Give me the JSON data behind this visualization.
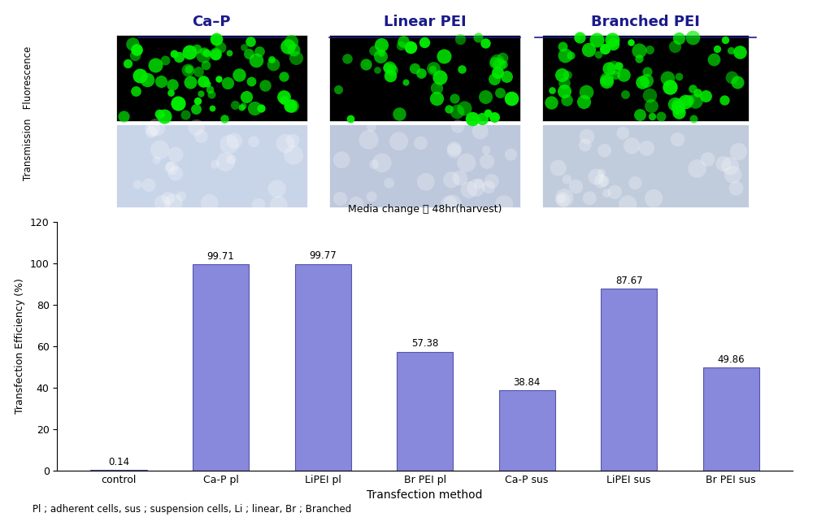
{
  "categories": [
    "control",
    "Ca-P pl",
    "LiPEI pl",
    "Br PEI pl",
    "Ca-P sus",
    "LiPEI sus",
    "Br PEI sus"
  ],
  "values": [
    0.14,
    99.71,
    99.77,
    57.38,
    38.84,
    87.67,
    49.86
  ],
  "bar_color": "#8888dd",
  "bar_edgecolor": "#5555aa",
  "subtitle": "Media change 後 48hr(harvest)",
  "xlabel": "Transfection method",
  "ylabel": "Transfection Efficiency (%)",
  "ylim": [
    0,
    120
  ],
  "yticks": [
    0,
    20,
    40,
    60,
    80,
    100,
    120
  ],
  "footnote": "Pl ; adherent cells, sus ; suspension cells, Li ; linear, Br ; Branched",
  "image_titles": [
    "Ca–P",
    "Linear PEI",
    "Branched PEI"
  ],
  "title_color": "#1a1a8c",
  "figure_bg": "#ffffff",
  "transmission_colors": [
    "#c8d4e8",
    "#bdc8dc",
    "#c0ccdc"
  ],
  "ylabel_top": "Transmission   Fluorescence"
}
